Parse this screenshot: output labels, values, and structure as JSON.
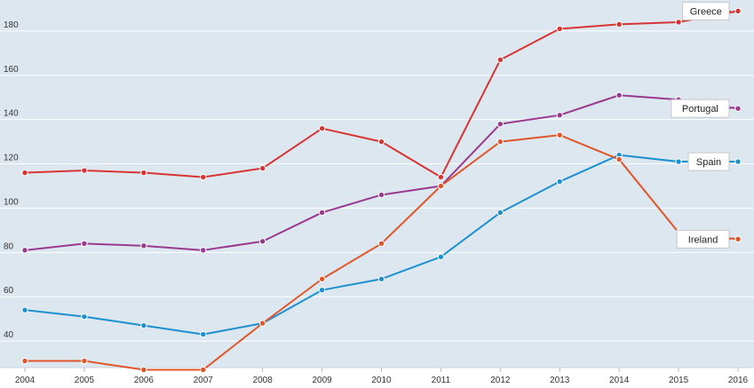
{
  "chart_data": {
    "type": "line",
    "title": "",
    "xlabel": "",
    "ylabel": "",
    "ylim": [
      28,
      194
    ],
    "grid": true,
    "x": [
      "2004",
      "2005",
      "2006",
      "2007",
      "2008",
      "2009",
      "2010",
      "2011",
      "2012",
      "2013",
      "2014",
      "2015",
      "2016"
    ],
    "y_ticks": [
      40,
      60,
      80,
      100,
      120,
      140,
      160,
      180
    ],
    "series": [
      {
        "name": "Greece",
        "color": "#d93434",
        "values": [
          116,
          117,
          116,
          114,
          118,
          136,
          130,
          114,
          167,
          181,
          183,
          184,
          189
        ]
      },
      {
        "name": "Portugal",
        "color": "#9a3a8f",
        "values": [
          81,
          84,
          83,
          81,
          85,
          98,
          106,
          110,
          138,
          142,
          151,
          149,
          145
        ]
      },
      {
        "name": "Spain",
        "color": "#1d90d0",
        "values": [
          54,
          51,
          47,
          43,
          48,
          63,
          68,
          78,
          98,
          112,
          124,
          121,
          121
        ]
      },
      {
        "name": "Ireland",
        "color": "#e0562b",
        "values": [
          31,
          31,
          27,
          27,
          48,
          68,
          84,
          110,
          130,
          133,
          122,
          89,
          86
        ]
      }
    ]
  }
}
